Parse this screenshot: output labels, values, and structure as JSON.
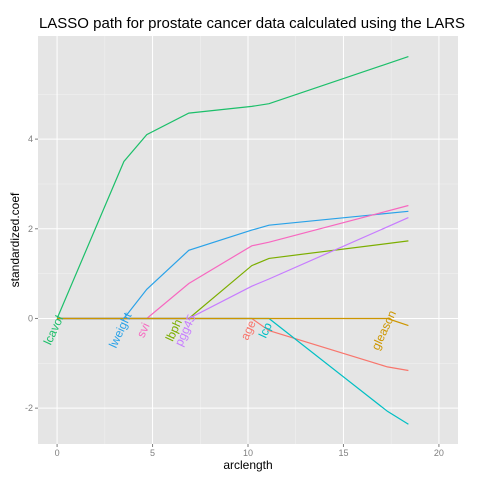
{
  "chart_data": {
    "type": "line",
    "title": "LASSO path for prostate cancer data calculated using the LARS",
    "xlabel": "arclength",
    "ylabel": "standardized.coef",
    "xlim": [
      -1,
      21
    ],
    "ylim": [
      -2.8,
      6.3
    ],
    "x_ticks": [
      0,
      5,
      10,
      15,
      20
    ],
    "y_ticks": [
      -2,
      0,
      2,
      4
    ],
    "grid": true,
    "legend": "none",
    "colors": {
      "panel_background": "#e5e5e5",
      "grid_major": "#ffffff",
      "grid_minor": "#f2f2f2"
    },
    "series": [
      {
        "name": "lcavol",
        "color": "#1cbf6a",
        "x": [
          0,
          3.5,
          4.7,
          6.9,
          10.2,
          11.1,
          18.4
        ],
        "y": [
          0,
          3.5,
          4.1,
          4.58,
          4.73,
          4.79,
          5.84
        ],
        "label_pos": [
          0,
          -0.3
        ]
      },
      {
        "name": "lweight",
        "color": "#2aa2e8",
        "x": [
          0,
          3.5,
          4.7,
          6.9,
          10.2,
          11.1,
          18.4
        ],
        "y": [
          0,
          0,
          0.65,
          1.52,
          1.97,
          2.08,
          2.39
        ],
        "label_pos": [
          3.5,
          -0.3
        ]
      },
      {
        "name": "svi",
        "color": "#f768c0",
        "x": [
          0,
          4.7,
          6.9,
          10.2,
          11.1,
          18.4
        ],
        "y": [
          0,
          0,
          0.78,
          1.62,
          1.7,
          2.52
        ],
        "label_pos": [
          4.7,
          -0.3
        ]
      },
      {
        "name": "lbph",
        "color": "#7cae00",
        "x": [
          0,
          6.9,
          10.2,
          11.1,
          18.4
        ],
        "y": [
          0,
          0,
          1.18,
          1.34,
          1.73
        ],
        "label_pos": [
          6.3,
          -0.3
        ]
      },
      {
        "name": "pgg45",
        "color": "#c77cff",
        "x": [
          0,
          6.9,
          10.2,
          11.1,
          18.4
        ],
        "y": [
          0,
          0,
          0.72,
          0.88,
          2.25
        ],
        "label_pos": [
          6.9,
          -0.3
        ]
      },
      {
        "name": "age",
        "color": "#f8766d",
        "x": [
          0,
          10.2,
          11.1,
          17.3,
          18.4
        ],
        "y": [
          0,
          0,
          -0.27,
          -1.08,
          -1.16
        ],
        "label_pos": [
          10.2,
          -0.3
        ]
      },
      {
        "name": "lcp",
        "color": "#00bfc4",
        "x": [
          0,
          11.1,
          17.3,
          18.4
        ],
        "y": [
          0,
          0,
          -2.07,
          -2.36
        ],
        "label_pos": [
          11.1,
          -0.3
        ]
      },
      {
        "name": "gleason",
        "color": "#cd9600",
        "x": [
          0,
          17.3,
          18.4
        ],
        "y": [
          0,
          0,
          -0.16
        ],
        "label_pos": [
          17.3,
          -0.3
        ]
      }
    ]
  }
}
